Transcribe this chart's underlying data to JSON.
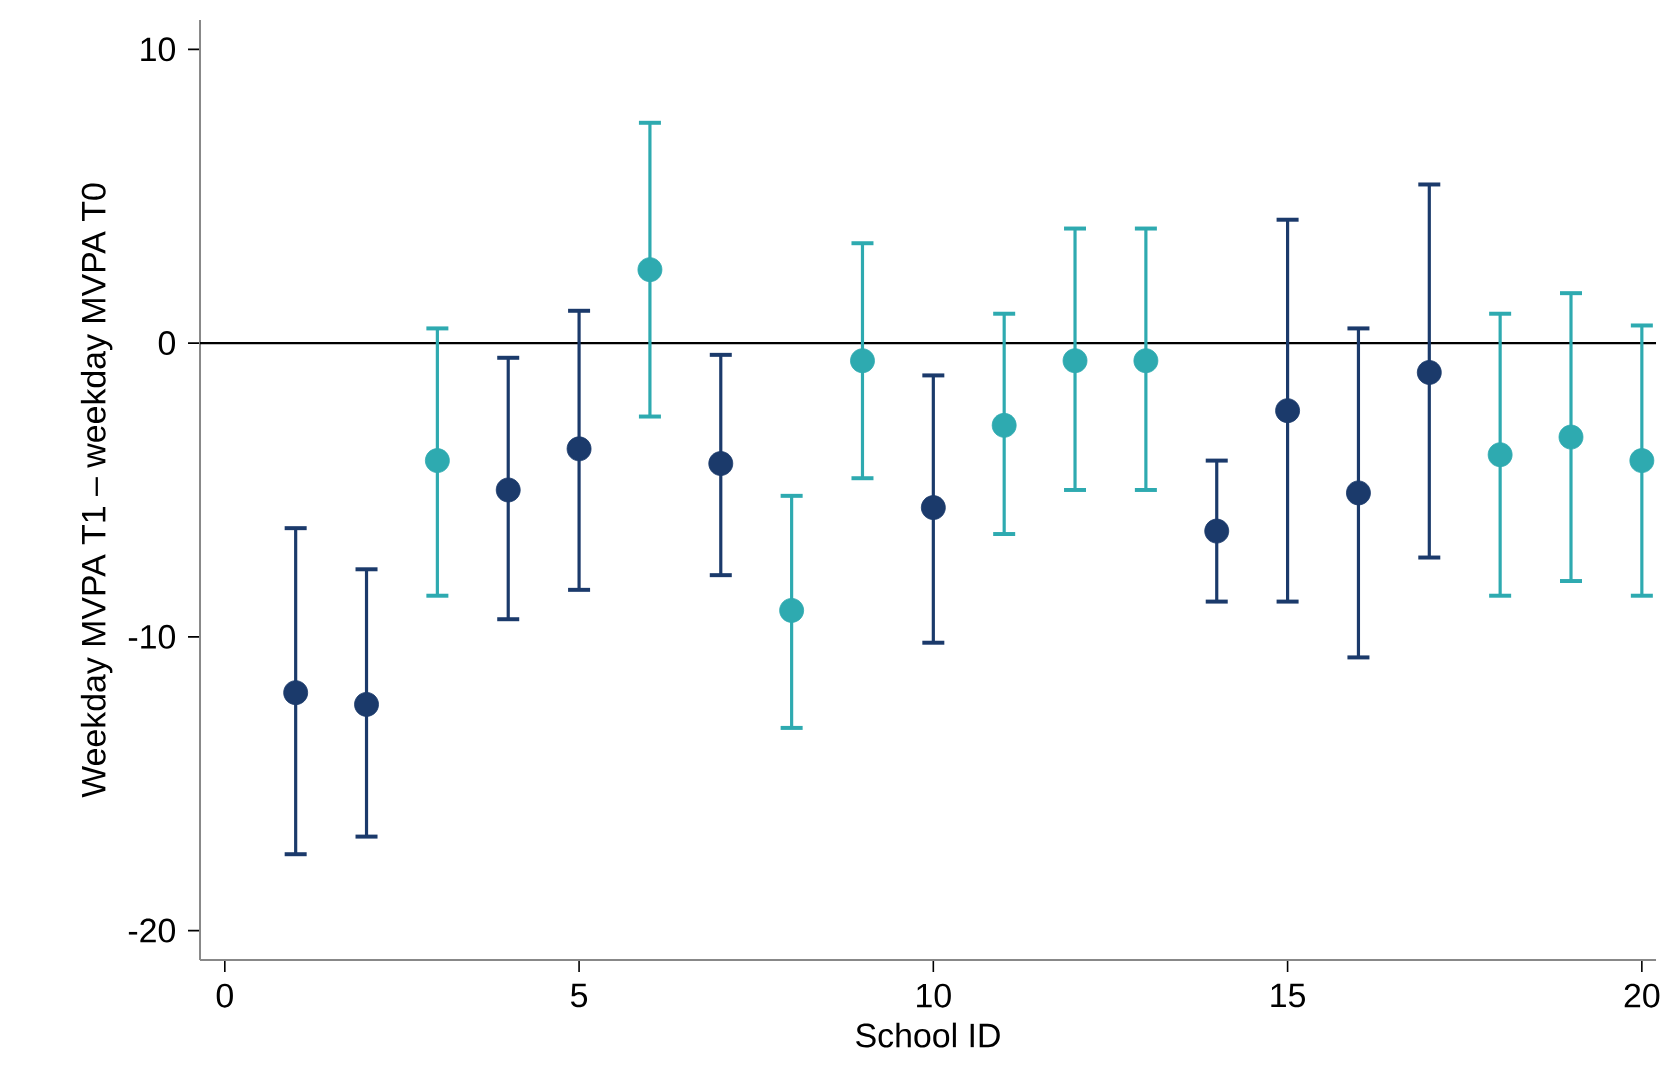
{
  "chart_data": {
    "type": "scatter",
    "xlabel": "School ID",
    "ylabel": "Weekday MVPA T1 – weekday MVPA T0",
    "series": [
      {
        "color": "#1b3a6b",
        "x": [
          1,
          2,
          4,
          5,
          7,
          10,
          14,
          15,
          16,
          17
        ],
        "values": [
          -11.9,
          -12.3,
          -5.0,
          -3.6,
          -4.1,
          -5.6,
          -6.4,
          -2.3,
          -5.1,
          -1.0
        ],
        "errors": [
          [
            -17.4,
            -6.3
          ],
          [
            -16.8,
            -7.7
          ],
          [
            -9.4,
            -0.5
          ],
          [
            -8.4,
            1.1
          ],
          [
            -7.9,
            -0.4
          ],
          [
            -10.2,
            -1.1
          ],
          [
            -8.8,
            -4.0
          ],
          [
            -8.8,
            4.2
          ],
          [
            -10.7,
            0.5
          ],
          [
            -7.3,
            5.4
          ]
        ]
      },
      {
        "color": "#2eaab0",
        "x": [
          3,
          6,
          8,
          9,
          11,
          12,
          13,
          18,
          19,
          20
        ],
        "values": [
          -4.0,
          2.5,
          -9.1,
          -0.6,
          -2.8,
          -0.6,
          -0.6,
          -3.8,
          -3.2,
          -4.0
        ],
        "errors": [
          [
            -8.6,
            0.5
          ],
          [
            -2.5,
            7.5
          ],
          [
            -13.1,
            -5.2
          ],
          [
            -4.6,
            3.4
          ],
          [
            -6.5,
            1.0
          ],
          [
            -5.0,
            3.9
          ],
          [
            -5.0,
            3.9
          ],
          [
            -8.6,
            1.0
          ],
          [
            -8.1,
            1.7
          ],
          [
            -8.6,
            0.6
          ]
        ]
      }
    ],
    "xlim": [
      -0.35,
      20.2
    ],
    "ylim": [
      -21,
      11
    ],
    "xticks": [
      0,
      5,
      10,
      15,
      20
    ],
    "yticks": [
      -20,
      -10,
      0,
      10
    ],
    "ref_lines": [
      {
        "axis": "y",
        "value": 0,
        "color": "#000000"
      }
    ],
    "marker": "circle",
    "grid": false
  }
}
